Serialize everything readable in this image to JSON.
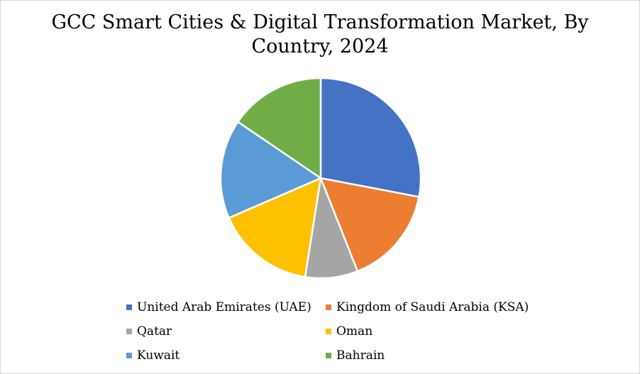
{
  "chart_data": {
    "type": "pie",
    "title": "GCC Smart Cities & Digital Transformation Market, By Country, 2024",
    "categories": [
      "United Arab Emirates (UAE)",
      "Kingdom of Saudi Arabia (KSA)",
      "Qatar",
      "Oman",
      "Kuwait",
      "Bahrain"
    ],
    "values": [
      28,
      16,
      8.5,
      16,
      16,
      15.5
    ],
    "colors": [
      "#4472C4",
      "#ED7D31",
      "#A5A5A5",
      "#FFC000",
      "#5B9BD5",
      "#70AD47"
    ],
    "legend_position": "bottom",
    "start_angle_deg": 0,
    "direction": "clockwise"
  }
}
